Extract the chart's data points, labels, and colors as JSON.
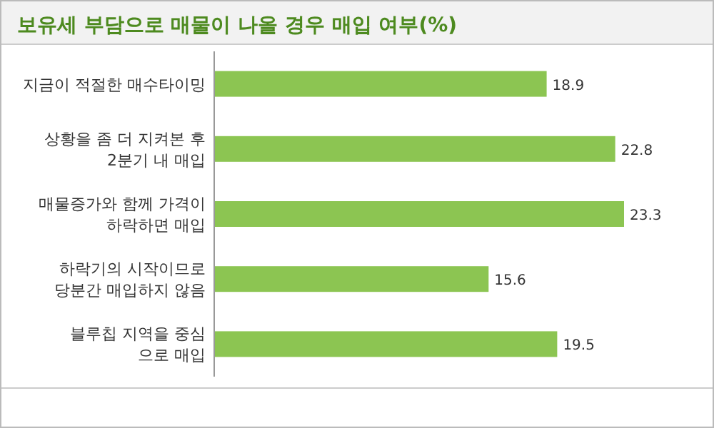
{
  "chart_data": {
    "type": "bar",
    "orientation": "horizontal",
    "title": "보유세 부담으로 매물이 나올 경우 매입 여부(%)",
    "categories": [
      "지금이 적절한 매수타이밍",
      "상황을 좀 더 지켜본 후\n2분기 내 매입",
      "매물증가와 함께 가격이\n하락하면 매입",
      "하락기의 시작이므로\n당분간 매입하지 않음",
      "블루칩 지역을 중심\n으로 매입"
    ],
    "values": [
      18.9,
      22.8,
      23.3,
      15.6,
      19.5
    ],
    "colors": [
      "#8cc552",
      "#8cc552",
      "#8cc552",
      "#8cc552",
      "#8cc552"
    ],
    "data_labels": true
  }
}
